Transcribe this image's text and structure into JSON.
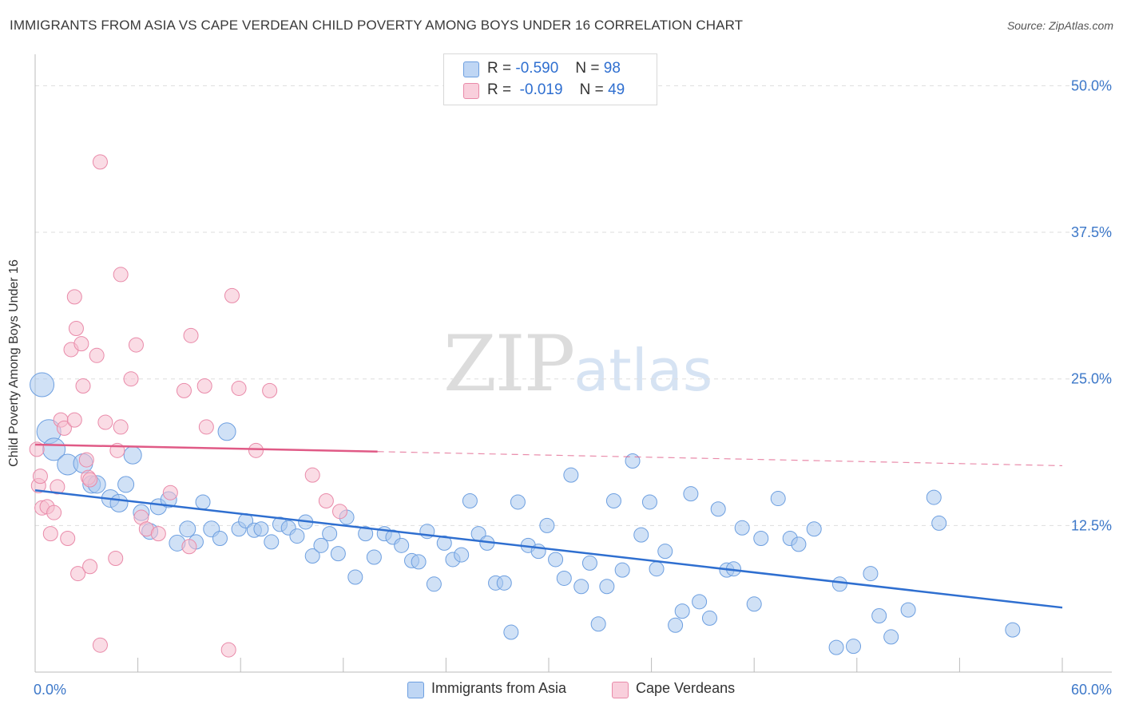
{
  "title": "IMMIGRANTS FROM ASIA VS CAPE VERDEAN CHILD POVERTY AMONG BOYS UNDER 16 CORRELATION CHART",
  "source": "Source: ZipAtlas.com",
  "watermark": {
    "zip": "ZIP",
    "atlas": "atlas"
  },
  "legend": {
    "r_label": "R =",
    "n_label": "N =",
    "asia": {
      "r": "-0.590",
      "n": "98"
    },
    "cape": {
      "r": "-0.019",
      "n": "49"
    }
  },
  "colors": {
    "asia_fill": "#a9c8ef",
    "asia_stroke": "#6d9fe0",
    "asia_line": "#2f6fd0",
    "cape_fill": "#f6bfd0",
    "cape_stroke": "#e98aa9",
    "cape_line": "#e05a86",
    "grid": "#dddddd",
    "tick_text": "#3d78c9"
  },
  "chart_data": {
    "type": "scatter",
    "title": "IMMIGRANTS FROM ASIA VS CAPE VERDEAN CHILD POVERTY AMONG BOYS UNDER 16 CORRELATION CHART",
    "xlabel": "",
    "ylabel": "Child Poverty Among Boys Under 16",
    "xlim": [
      0,
      60
    ],
    "ylim": [
      0,
      52
    ],
    "x_tick_labels": [
      {
        "value": 0,
        "label": "0.0%"
      },
      {
        "value": 60,
        "label": "60.0%"
      }
    ],
    "y_tick_labels": [
      {
        "value": 12.5,
        "label": "12.5%"
      },
      {
        "value": 25,
        "label": "25.0%"
      },
      {
        "value": 37.5,
        "label": "37.5%"
      },
      {
        "value": 50,
        "label": "50.0%"
      }
    ],
    "series": [
      {
        "name": "Immigrants from Asia",
        "r": -0.59,
        "n": 98,
        "trend": {
          "x0": 0,
          "y0": 15.5,
          "x1": 60,
          "y1": 5.5
        },
        "points": [
          [
            0.4,
            24.5,
            15
          ],
          [
            0.8,
            20.5,
            15
          ],
          [
            1.1,
            19.0,
            14
          ],
          [
            1.9,
            17.7,
            13
          ],
          [
            2.8,
            17.8,
            12
          ],
          [
            3.3,
            16.0,
            11
          ],
          [
            3.6,
            16.0,
            11
          ],
          [
            4.4,
            14.8,
            11
          ],
          [
            4.9,
            14.4,
            11
          ],
          [
            5.3,
            16.0,
            10
          ],
          [
            5.7,
            18.5,
            11
          ],
          [
            6.2,
            13.6,
            10
          ],
          [
            6.7,
            12.0,
            10
          ],
          [
            7.2,
            14.1,
            10
          ],
          [
            7.8,
            14.7,
            10
          ],
          [
            8.3,
            11.0,
            10
          ],
          [
            8.9,
            12.2,
            10
          ],
          [
            9.4,
            11.1,
            9
          ],
          [
            9.8,
            14.5,
            9
          ],
          [
            10.3,
            12.2,
            10
          ],
          [
            10.8,
            11.4,
            9
          ],
          [
            11.2,
            20.5,
            11
          ],
          [
            11.9,
            12.2,
            9
          ],
          [
            12.3,
            12.9,
            9
          ],
          [
            12.8,
            12.1,
            9
          ],
          [
            13.2,
            12.2,
            9
          ],
          [
            13.8,
            11.1,
            9
          ],
          [
            14.3,
            12.6,
            9
          ],
          [
            14.8,
            12.3,
            9
          ],
          [
            15.3,
            11.6,
            9
          ],
          [
            15.8,
            12.8,
            9
          ],
          [
            16.2,
            9.9,
            9
          ],
          [
            16.7,
            10.8,
            9
          ],
          [
            17.2,
            11.8,
            9
          ],
          [
            17.7,
            10.1,
            9
          ],
          [
            18.2,
            13.2,
            9
          ],
          [
            18.7,
            8.1,
            9
          ],
          [
            19.3,
            11.8,
            9
          ],
          [
            19.8,
            9.8,
            9
          ],
          [
            20.4,
            11.8,
            9
          ],
          [
            20.9,
            11.5,
            9
          ],
          [
            21.4,
            10.8,
            9
          ],
          [
            22.0,
            9.5,
            9
          ],
          [
            22.4,
            9.4,
            9
          ],
          [
            22.9,
            12.0,
            9
          ],
          [
            23.3,
            7.5,
            9
          ],
          [
            23.9,
            11.0,
            9
          ],
          [
            24.4,
            9.6,
            9
          ],
          [
            24.9,
            10.0,
            9
          ],
          [
            25.4,
            14.6,
            9
          ],
          [
            25.9,
            11.8,
            9
          ],
          [
            26.4,
            11.0,
            9
          ],
          [
            26.9,
            7.6,
            9
          ],
          [
            27.4,
            7.6,
            9
          ],
          [
            27.8,
            3.4,
            9
          ],
          [
            28.2,
            14.5,
            9
          ],
          [
            28.8,
            10.8,
            9
          ],
          [
            29.4,
            10.3,
            9
          ],
          [
            29.9,
            12.5,
            9
          ],
          [
            30.4,
            9.6,
            9
          ],
          [
            30.9,
            8.0,
            9
          ],
          [
            31.3,
            16.8,
            9
          ],
          [
            31.9,
            7.3,
            9
          ],
          [
            32.4,
            9.3,
            9
          ],
          [
            32.9,
            4.1,
            9
          ],
          [
            33.4,
            7.3,
            9
          ],
          [
            33.8,
            14.6,
            9
          ],
          [
            34.3,
            8.7,
            9
          ],
          [
            34.9,
            18.0,
            9
          ],
          [
            35.4,
            11.7,
            9
          ],
          [
            35.9,
            14.5,
            9
          ],
          [
            36.3,
            8.8,
            9
          ],
          [
            36.8,
            10.3,
            9
          ],
          [
            37.4,
            4.0,
            9
          ],
          [
            37.8,
            5.2,
            9
          ],
          [
            38.3,
            15.2,
            9
          ],
          [
            38.8,
            6.0,
            9
          ],
          [
            39.4,
            4.6,
            9
          ],
          [
            39.9,
            13.9,
            9
          ],
          [
            40.4,
            8.7,
            9
          ],
          [
            40.8,
            8.8,
            9
          ],
          [
            41.3,
            12.3,
            9
          ],
          [
            42.0,
            5.8,
            9
          ],
          [
            42.4,
            11.4,
            9
          ],
          [
            43.4,
            14.8,
            9
          ],
          [
            44.1,
            11.4,
            9
          ],
          [
            44.6,
            10.9,
            9
          ],
          [
            45.5,
            12.2,
            9
          ],
          [
            46.8,
            2.1,
            9
          ],
          [
            47.0,
            7.5,
            9
          ],
          [
            47.8,
            2.2,
            9
          ],
          [
            48.8,
            8.4,
            9
          ],
          [
            49.3,
            4.8,
            9
          ],
          [
            50.0,
            3.0,
            9
          ],
          [
            51.0,
            5.3,
            9
          ],
          [
            52.5,
            14.9,
            9
          ],
          [
            52.8,
            12.7,
            9
          ],
          [
            57.1,
            3.6,
            9
          ]
        ]
      },
      {
        "name": "Cape Verdeans",
        "r": -0.019,
        "n": 49,
        "trend": {
          "x0": 0,
          "y0": 19.4,
          "x1": 20,
          "y1": 18.8,
          "dash_x1": 60,
          "dash_y1": 17.6
        },
        "points": [
          [
            0.1,
            19.0,
            9
          ],
          [
            0.2,
            15.9,
            9
          ],
          [
            0.3,
            16.7,
            9
          ],
          [
            0.4,
            14.0,
            9
          ],
          [
            0.7,
            14.1,
            9
          ],
          [
            0.9,
            11.8,
            9
          ],
          [
            1.1,
            13.6,
            9
          ],
          [
            1.3,
            15.8,
            9
          ],
          [
            1.5,
            21.5,
            9
          ],
          [
            1.7,
            20.8,
            9
          ],
          [
            1.9,
            11.4,
            9
          ],
          [
            2.1,
            27.5,
            9
          ],
          [
            2.3,
            21.5,
            9
          ],
          [
            2.3,
            32.0,
            9
          ],
          [
            2.4,
            29.3,
            9
          ],
          [
            2.5,
            8.4,
            9
          ],
          [
            2.7,
            28.0,
            9
          ],
          [
            2.8,
            24.4,
            9
          ],
          [
            3.0,
            18.1,
            9
          ],
          [
            3.1,
            16.6,
            9
          ],
          [
            3.2,
            16.4,
            9
          ],
          [
            3.2,
            9.0,
            9
          ],
          [
            3.6,
            27.0,
            9
          ],
          [
            3.8,
            43.5,
            9
          ],
          [
            3.8,
            2.3,
            9
          ],
          [
            4.1,
            21.3,
            9
          ],
          [
            4.7,
            9.7,
            9
          ],
          [
            4.8,
            18.9,
            9
          ],
          [
            5.0,
            20.9,
            9
          ],
          [
            5.0,
            33.9,
            9
          ],
          [
            5.6,
            25.0,
            9
          ],
          [
            5.9,
            27.9,
            9
          ],
          [
            6.2,
            13.2,
            9
          ],
          [
            6.5,
            12.2,
            9
          ],
          [
            7.2,
            11.8,
            9
          ],
          [
            7.9,
            15.3,
            9
          ],
          [
            8.7,
            24.0,
            9
          ],
          [
            9.0,
            10.7,
            9
          ],
          [
            9.1,
            28.7,
            9
          ],
          [
            9.9,
            24.4,
            9
          ],
          [
            10.0,
            20.9,
            9
          ],
          [
            11.3,
            1.9,
            9
          ],
          [
            11.5,
            32.1,
            9
          ],
          [
            11.9,
            24.2,
            9
          ],
          [
            12.9,
            18.9,
            9
          ],
          [
            13.7,
            24.0,
            9
          ],
          [
            16.2,
            16.8,
            9
          ],
          [
            17.0,
            14.6,
            9
          ],
          [
            17.8,
            13.7,
            9
          ]
        ]
      }
    ]
  }
}
